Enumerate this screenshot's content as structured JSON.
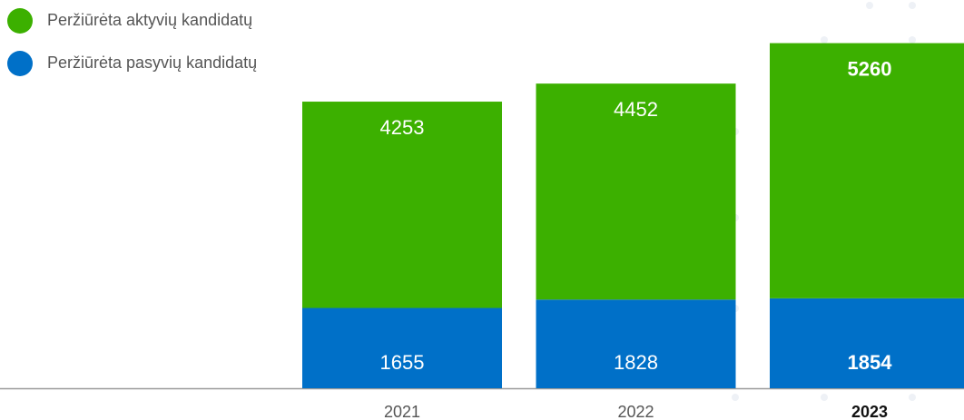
{
  "chart_data": {
    "type": "stacked_bar",
    "categories": [
      "2021",
      "2022",
      "2023"
    ],
    "series": [
      {
        "name": "Peržiūrėta pasyvių kandidatų",
        "color": "#0070c8",
        "values": [
          1655,
          1828,
          1854
        ]
      },
      {
        "name": "Peržiūrėta aktyvių kandidatų",
        "color": "#3cb000",
        "values": [
          4253,
          4452,
          5260
        ]
      }
    ],
    "highlight": "2023",
    "legend": "top-left"
  }
}
